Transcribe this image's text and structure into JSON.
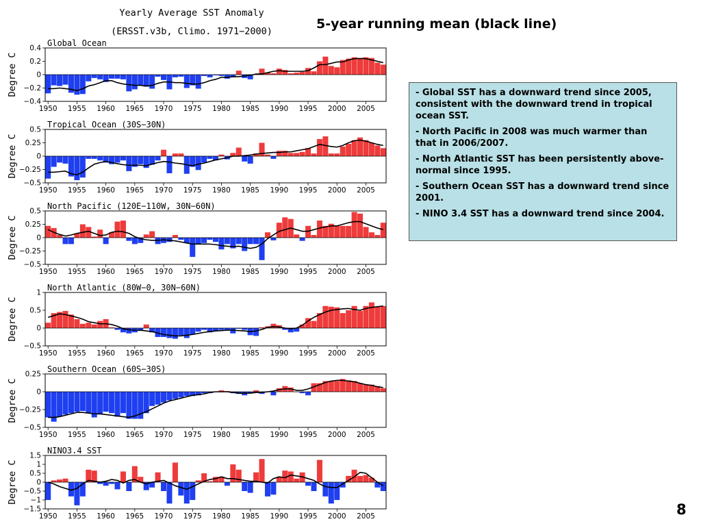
{
  "figure": {
    "title_line1": "Yearly Average SST Anomaly",
    "title_line2": "(ERSST.v3b, Climo. 1971−2000)"
  },
  "headline": "5-year running mean (black line)",
  "notes": [
    "-  Global SST has a downward trend since 2005, consistent with the downward trend in tropical ocean SST.",
    "-  North Pacific in 2008 was much warmer than that in 2006/2007.",
    "- North Atlantic SST has been persistently above-normal since 1995.",
    "- Southern Ocean SST has a downward trend since 2001.",
    "- NINO 3.4 SST has a downward trend since 2004."
  ],
  "page_number": "8",
  "colors": {
    "positive": "#ee3b3b",
    "negative": "#1f3ff0",
    "running_mean": "#000000",
    "notes_background": "#b8e0e6"
  },
  "chart_data": [
    {
      "type": "bar",
      "title": "Global Ocean",
      "ylabel": "Degree C",
      "x": [
        1950,
        1951,
        1952,
        1953,
        1954,
        1955,
        1956,
        1957,
        1958,
        1959,
        1960,
        1961,
        1962,
        1963,
        1964,
        1965,
        1966,
        1967,
        1968,
        1969,
        1970,
        1971,
        1972,
        1973,
        1974,
        1975,
        1976,
        1977,
        1978,
        1979,
        1980,
        1981,
        1982,
        1983,
        1984,
        1985,
        1986,
        1987,
        1988,
        1989,
        1990,
        1991,
        1992,
        1993,
        1994,
        1995,
        1996,
        1997,
        1998,
        1999,
        2000,
        2001,
        2002,
        2003,
        2004,
        2005,
        2006,
        2007,
        2008
      ],
      "values": [
        -0.28,
        -0.16,
        -0.17,
        -0.15,
        -0.27,
        -0.3,
        -0.29,
        -0.1,
        -0.05,
        -0.07,
        -0.11,
        -0.06,
        -0.06,
        -0.07,
        -0.25,
        -0.22,
        -0.16,
        -0.18,
        -0.21,
        -0.03,
        -0.08,
        -0.22,
        -0.04,
        -0.03,
        -0.2,
        -0.16,
        -0.21,
        -0.02,
        -0.04,
        -0.01,
        -0.02,
        -0.06,
        -0.04,
        0.06,
        -0.05,
        -0.07,
        0.01,
        0.09,
        0.03,
        0.02,
        0.09,
        0.07,
        0.02,
        0.03,
        0.04,
        0.1,
        0.05,
        0.2,
        0.27,
        0.13,
        0.11,
        0.22,
        0.24,
        0.26,
        0.25,
        0.26,
        0.25,
        0.18,
        0.15
      ],
      "running_mean": [
        -0.21,
        -0.21,
        -0.2,
        -0.21,
        -0.22,
        -0.24,
        -0.21,
        -0.17,
        -0.15,
        -0.12,
        -0.09,
        -0.09,
        -0.12,
        -0.14,
        -0.15,
        -0.16,
        -0.16,
        -0.17,
        -0.16,
        -0.13,
        -0.11,
        -0.11,
        -0.12,
        -0.12,
        -0.13,
        -0.14,
        -0.14,
        -0.12,
        -0.09,
        -0.07,
        -0.04,
        -0.04,
        -0.03,
        -0.03,
        -0.02,
        -0.01,
        0.01,
        0.01,
        0.03,
        0.05,
        0.06,
        0.05,
        0.05,
        0.05,
        0.05,
        0.06,
        0.1,
        0.15,
        0.15,
        0.17,
        0.19,
        0.19,
        0.22,
        0.24,
        0.24,
        0.24,
        0.22,
        0.2,
        0.18
      ],
      "ylim": [
        -0.4,
        0.4
      ],
      "yticks": [
        -0.4,
        -0.2,
        0,
        0.2,
        0.4
      ],
      "ytick_labels": [
        "−0.4",
        "−0.2",
        "0",
        "0.2",
        "0.4"
      ]
    },
    {
      "type": "bar",
      "title": "Tropical Ocean (30S−30N)",
      "ylabel": "Degree C",
      "x": [
        1950,
        1951,
        1952,
        1953,
        1954,
        1955,
        1956,
        1957,
        1958,
        1959,
        1960,
        1961,
        1962,
        1963,
        1964,
        1965,
        1966,
        1967,
        1968,
        1969,
        1970,
        1971,
        1972,
        1973,
        1974,
        1975,
        1976,
        1977,
        1978,
        1979,
        1980,
        1981,
        1982,
        1983,
        1984,
        1985,
        1986,
        1987,
        1988,
        1989,
        1990,
        1991,
        1992,
        1993,
        1994,
        1995,
        1996,
        1997,
        1998,
        1999,
        2000,
        2001,
        2002,
        2003,
        2004,
        2005,
        2006,
        2007,
        2008
      ],
      "values": [
        -0.42,
        -0.2,
        -0.12,
        -0.14,
        -0.38,
        -0.45,
        -0.4,
        -0.05,
        -0.05,
        -0.08,
        -0.12,
        -0.15,
        -0.12,
        -0.08,
        -0.28,
        -0.2,
        -0.15,
        -0.22,
        -0.16,
        -0.08,
        0.12,
        -0.32,
        0.05,
        0.05,
        -0.33,
        -0.2,
        -0.26,
        -0.12,
        -0.05,
        -0.08,
        0.03,
        -0.06,
        0.06,
        0.16,
        -0.1,
        -0.14,
        0.05,
        0.25,
        0.03,
        -0.05,
        0.1,
        0.1,
        0.06,
        0.06,
        0.08,
        0.15,
        0.05,
        0.32,
        0.37,
        0.05,
        0.05,
        0.18,
        0.23,
        0.3,
        0.35,
        0.3,
        0.25,
        0.2,
        0.15
      ],
      "running_mean": [
        -0.3,
        -0.3,
        -0.29,
        -0.28,
        -0.33,
        -0.35,
        -0.3,
        -0.22,
        -0.15,
        -0.12,
        -0.1,
        -0.12,
        -0.14,
        -0.16,
        -0.17,
        -0.17,
        -0.17,
        -0.18,
        -0.15,
        -0.12,
        -0.1,
        -0.11,
        -0.13,
        -0.14,
        -0.16,
        -0.18,
        -0.15,
        -0.13,
        -0.1,
        -0.07,
        -0.05,
        -0.03,
        0.0,
        0.0,
        0.01,
        0.02,
        0.04,
        0.05,
        0.06,
        0.07,
        0.07,
        0.08,
        0.08,
        0.1,
        0.12,
        0.14,
        0.18,
        0.22,
        0.2,
        0.18,
        0.17,
        0.2,
        0.25,
        0.29,
        0.3,
        0.28,
        0.25,
        0.22,
        0.2
      ],
      "ylim": [
        -0.5,
        0.5
      ],
      "yticks": [
        -0.5,
        -0.25,
        0,
        0.25,
        0.5
      ],
      "ytick_labels": [
        "−0.5",
        "−0.25",
        "0",
        "0.25",
        "0.5"
      ]
    },
    {
      "type": "bar",
      "title": "North Pacific (120E−110W, 30N−60N)",
      "ylabel": "Degree C",
      "x": [
        1950,
        1951,
        1952,
        1953,
        1954,
        1955,
        1956,
        1957,
        1958,
        1959,
        1960,
        1961,
        1962,
        1963,
        1964,
        1965,
        1966,
        1967,
        1968,
        1969,
        1970,
        1971,
        1972,
        1973,
        1974,
        1975,
        1976,
        1977,
        1978,
        1979,
        1980,
        1981,
        1982,
        1983,
        1984,
        1985,
        1986,
        1987,
        1988,
        1989,
        1990,
        1991,
        1992,
        1993,
        1994,
        1995,
        1996,
        1997,
        1998,
        1999,
        2000,
        2001,
        2002,
        2003,
        2004,
        2005,
        2006,
        2007,
        2008
      ],
      "values": [
        0.22,
        0.18,
        0.05,
        -0.12,
        -0.12,
        0.08,
        0.25,
        0.2,
        0.02,
        0.15,
        -0.12,
        0.1,
        0.3,
        0.32,
        -0.06,
        -0.12,
        -0.1,
        0.06,
        0.12,
        -0.12,
        -0.1,
        -0.08,
        0.05,
        -0.04,
        -0.1,
        -0.36,
        -0.12,
        -0.1,
        -0.04,
        -0.08,
        -0.22,
        -0.12,
        -0.2,
        -0.12,
        -0.25,
        -0.12,
        -0.12,
        -0.42,
        0.1,
        -0.05,
        0.28,
        0.38,
        0.35,
        0.06,
        -0.06,
        0.22,
        0.05,
        0.32,
        0.22,
        0.26,
        0.22,
        0.22,
        0.22,
        0.48,
        0.45,
        0.2,
        0.1,
        0.05,
        0.28
      ],
      "running_mean": [
        0.15,
        0.1,
        0.06,
        0.03,
        0.05,
        0.08,
        0.1,
        0.12,
        0.08,
        0.04,
        0.05,
        0.1,
        0.12,
        0.11,
        0.08,
        0.02,
        -0.02,
        -0.04,
        -0.05,
        -0.05,
        -0.04,
        -0.05,
        -0.06,
        -0.08,
        -0.1,
        -0.12,
        -0.12,
        -0.12,
        -0.12,
        -0.13,
        -0.15,
        -0.16,
        -0.17,
        -0.16,
        -0.18,
        -0.2,
        -0.18,
        -0.12,
        -0.02,
        0.05,
        0.12,
        0.15,
        0.18,
        0.15,
        0.12,
        0.12,
        0.15,
        0.18,
        0.2,
        0.22,
        0.22,
        0.25,
        0.28,
        0.3,
        0.3,
        0.26,
        0.22,
        0.18,
        0.15
      ],
      "ylim": [
        -0.5,
        0.5
      ],
      "yticks": [
        -0.5,
        -0.25,
        0,
        0.25,
        0.5
      ],
      "ytick_labels": [
        "−0.5",
        "−0.25",
        "0",
        "0.25",
        "0.5"
      ]
    },
    {
      "type": "bar",
      "title": "North Atlantic (80W−0, 30N−60N)",
      "ylabel": "Degree C",
      "x": [
        1950,
        1951,
        1952,
        1953,
        1954,
        1955,
        1956,
        1957,
        1958,
        1959,
        1960,
        1961,
        1962,
        1963,
        1964,
        1965,
        1966,
        1967,
        1968,
        1969,
        1970,
        1971,
        1972,
        1973,
        1974,
        1975,
        1976,
        1977,
        1978,
        1979,
        1980,
        1981,
        1982,
        1983,
        1984,
        1985,
        1986,
        1987,
        1988,
        1989,
        1990,
        1991,
        1992,
        1993,
        1994,
        1995,
        1996,
        1997,
        1998,
        1999,
        2000,
        2001,
        2002,
        2003,
        2004,
        2005,
        2006,
        2007,
        2008
      ],
      "values": [
        0.15,
        0.42,
        0.45,
        0.48,
        0.38,
        0.25,
        0.12,
        0.15,
        0.1,
        0.2,
        0.25,
        0.02,
        -0.05,
        -0.12,
        -0.15,
        -0.12,
        -0.08,
        0.1,
        -0.12,
        -0.25,
        -0.25,
        -0.28,
        -0.3,
        -0.2,
        -0.28,
        -0.18,
        -0.1,
        -0.05,
        -0.12,
        -0.08,
        -0.05,
        -0.05,
        -0.15,
        -0.02,
        -0.05,
        -0.2,
        -0.22,
        0.02,
        0.05,
        0.12,
        0.08,
        -0.05,
        -0.12,
        -0.1,
        0.1,
        0.28,
        0.2,
        0.42,
        0.62,
        0.6,
        0.58,
        0.42,
        0.5,
        0.62,
        0.48,
        0.62,
        0.72,
        0.6,
        0.62
      ],
      "running_mean": [
        0.3,
        0.35,
        0.4,
        0.38,
        0.34,
        0.3,
        0.25,
        0.18,
        0.15,
        0.12,
        0.12,
        0.1,
        0.05,
        -0.02,
        -0.05,
        -0.06,
        -0.06,
        -0.08,
        -0.1,
        -0.14,
        -0.18,
        -0.2,
        -0.22,
        -0.22,
        -0.2,
        -0.18,
        -0.15,
        -0.12,
        -0.1,
        -0.08,
        -0.07,
        -0.06,
        -0.06,
        -0.07,
        -0.08,
        -0.1,
        -0.08,
        -0.04,
        0.02,
        0.04,
        0.03,
        0.0,
        -0.02,
        0.0,
        0.08,
        0.2,
        0.3,
        0.38,
        0.45,
        0.5,
        0.52,
        0.54,
        0.55,
        0.52,
        0.5,
        0.55,
        0.58,
        0.6,
        0.62
      ],
      "ylim": [
        -0.5,
        1
      ],
      "yticks": [
        -0.5,
        0,
        0.5,
        1
      ],
      "ytick_labels": [
        "−0.5",
        "0",
        "0.5",
        "1"
      ]
    },
    {
      "type": "bar",
      "title": "Southern Ocean (60S−30S)",
      "ylabel": "Degree C",
      "x": [
        1950,
        1951,
        1952,
        1953,
        1954,
        1955,
        1956,
        1957,
        1958,
        1959,
        1960,
        1961,
        1962,
        1963,
        1964,
        1965,
        1966,
        1967,
        1968,
        1969,
        1970,
        1971,
        1972,
        1973,
        1974,
        1975,
        1976,
        1977,
        1978,
        1979,
        1980,
        1981,
        1982,
        1983,
        1984,
        1985,
        1986,
        1987,
        1988,
        1989,
        1990,
        1991,
        1992,
        1993,
        1994,
        1995,
        1996,
        1997,
        1998,
        1999,
        2000,
        2001,
        2002,
        2003,
        2004,
        2005,
        2006,
        2007,
        2008
      ],
      "values": [
        -0.36,
        -0.42,
        -0.35,
        -0.32,
        -0.3,
        -0.28,
        -0.27,
        -0.3,
        -0.36,
        -0.32,
        -0.28,
        -0.3,
        -0.35,
        -0.3,
        -0.38,
        -0.38,
        -0.38,
        -0.3,
        -0.2,
        -0.18,
        -0.15,
        -0.12,
        -0.1,
        -0.08,
        -0.06,
        -0.06,
        -0.05,
        -0.02,
        -0.02,
        0.0,
        0.02,
        0.01,
        -0.02,
        -0.03,
        -0.05,
        -0.02,
        0.02,
        -0.03,
        0.0,
        -0.05,
        0.05,
        0.08,
        0.06,
        0.0,
        -0.02,
        -0.05,
        0.12,
        0.12,
        0.15,
        0.15,
        0.15,
        0.18,
        0.16,
        0.15,
        0.12,
        0.1,
        0.1,
        0.08,
        0.05
      ],
      "running_mean": [
        -0.36,
        -0.36,
        -0.35,
        -0.33,
        -0.31,
        -0.29,
        -0.29,
        -0.3,
        -0.31,
        -0.31,
        -0.32,
        -0.33,
        -0.34,
        -0.35,
        -0.36,
        -0.34,
        -0.31,
        -0.28,
        -0.24,
        -0.2,
        -0.16,
        -0.13,
        -0.11,
        -0.09,
        -0.07,
        -0.05,
        -0.04,
        -0.03,
        -0.01,
        0.0,
        0.0,
        0.0,
        -0.01,
        -0.02,
        -0.02,
        -0.02,
        -0.01,
        -0.01,
        0.0,
        0.01,
        0.03,
        0.04,
        0.04,
        0.02,
        0.02,
        0.04,
        0.07,
        0.1,
        0.13,
        0.15,
        0.16,
        0.16,
        0.15,
        0.14,
        0.12,
        0.1,
        0.09,
        0.07,
        0.06
      ],
      "ylim": [
        -0.5,
        0.25
      ],
      "yticks": [
        -0.5,
        -0.25,
        0,
        0.25
      ],
      "ytick_labels": [
        "−0.5",
        "−0.25",
        "0",
        "0.25"
      ]
    },
    {
      "type": "bar",
      "title": "NINO3.4 SST",
      "ylabel": "Degree C",
      "x": [
        1950,
        1951,
        1952,
        1953,
        1954,
        1955,
        1956,
        1957,
        1958,
        1959,
        1960,
        1961,
        1962,
        1963,
        1964,
        1965,
        1966,
        1967,
        1968,
        1969,
        1970,
        1971,
        1972,
        1973,
        1974,
        1975,
        1976,
        1977,
        1978,
        1979,
        1980,
        1981,
        1982,
        1983,
        1984,
        1985,
        1986,
        1987,
        1988,
        1989,
        1990,
        1991,
        1992,
        1993,
        1994,
        1995,
        1996,
        1997,
        1998,
        1999,
        2000,
        2001,
        2002,
        2003,
        2004,
        2005,
        2006,
        2007,
        2008
      ],
      "values": [
        -1.0,
        0.1,
        0.15,
        0.2,
        -0.8,
        -1.3,
        -0.8,
        0.7,
        0.65,
        -0.1,
        -0.2,
        -0.1,
        -0.4,
        0.6,
        -0.5,
        0.9,
        0.3,
        -0.45,
        -0.3,
        0.55,
        -0.5,
        -1.2,
        1.1,
        -0.75,
        -1.2,
        -1.0,
        0.1,
        0.5,
        0.05,
        0.3,
        0.3,
        -0.2,
        1.0,
        0.7,
        -0.5,
        -0.6,
        0.55,
        1.3,
        -0.8,
        -0.7,
        0.3,
        0.65,
        0.6,
        0.2,
        0.55,
        -0.2,
        -0.5,
        1.25,
        -0.8,
        -1.2,
        -1.0,
        -0.3,
        0.35,
        0.7,
        0.35,
        0.4,
        0.25,
        -0.3,
        -0.5
      ],
      "running_mean": [
        0.0,
        -0.1,
        -0.25,
        -0.35,
        -0.45,
        -0.35,
        -0.1,
        0.1,
        0.05,
        0.0,
        0.05,
        0.15,
        0.1,
        -0.05,
        0.1,
        0.15,
        0.0,
        -0.1,
        0.0,
        0.05,
        0.1,
        -0.05,
        -0.2,
        -0.3,
        -0.4,
        -0.25,
        -0.1,
        0.05,
        0.15,
        0.2,
        0.3,
        0.2,
        0.2,
        0.15,
        0.1,
        0.05,
        0.05,
        0.0,
        -0.05,
        0.2,
        0.3,
        0.25,
        0.4,
        0.35,
        0.3,
        0.2,
        0.1,
        -0.1,
        -0.25,
        -0.3,
        -0.3,
        -0.1,
        0.1,
        0.3,
        0.55,
        0.5,
        0.25,
        0.0,
        -0.2
      ],
      "ylim": [
        -1.5,
        1.5
      ],
      "yticks": [
        -1.5,
        -1,
        -0.5,
        0,
        0.5,
        1,
        1.5
      ],
      "ytick_labels": [
        "−1.5",
        "−1",
        "−0.5",
        "0",
        "0.5",
        "1",
        "1.5"
      ]
    }
  ],
  "x_axis": {
    "xlim": [
      1949.5,
      2008.5
    ],
    "ticks": [
      1950,
      1955,
      1960,
      1965,
      1970,
      1975,
      1980,
      1985,
      1990,
      1995,
      2000,
      2005
    ],
    "labels": [
      "1950",
      "1955",
      "1960",
      "1965",
      "1970",
      "1975",
      "1980",
      "1985",
      "1990",
      "1995",
      "2000",
      "2005"
    ]
  }
}
